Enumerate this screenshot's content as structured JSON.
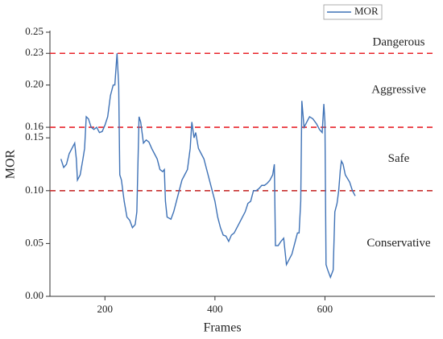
{
  "chart_data": {
    "type": "line",
    "xlabel": "Frames",
    "ylabel": "MOR",
    "x": [
      120,
      125,
      130,
      135,
      140,
      145,
      148,
      150,
      155,
      160,
      163,
      166,
      170,
      175,
      180,
      185,
      190,
      195,
      200,
      205,
      210,
      215,
      218,
      222,
      225,
      227,
      230,
      235,
      240,
      245,
      250,
      255,
      258,
      262,
      265,
      270,
      275,
      280,
      285,
      290,
      295,
      300,
      305,
      308,
      310,
      313,
      320,
      325,
      330,
      335,
      340,
      345,
      350,
      355,
      358,
      362,
      365,
      370,
      375,
      380,
      385,
      390,
      395,
      400,
      405,
      410,
      415,
      420,
      425,
      430,
      435,
      440,
      445,
      450,
      455,
      460,
      465,
      470,
      475,
      480,
      485,
      490,
      495,
      500,
      505,
      508,
      510,
      515,
      520,
      525,
      528,
      530,
      535,
      540,
      545,
      550,
      553,
      556,
      558,
      562,
      567,
      572,
      578,
      585,
      590,
      595,
      598,
      600,
      602,
      605,
      610,
      615,
      618,
      622,
      625,
      628,
      630,
      633,
      637,
      645,
      650,
      655
    ],
    "series": [
      {
        "name": "MOR",
        "color": "#3f72b6",
        "values": [
          0.13,
          0.122,
          0.125,
          0.135,
          0.14,
          0.145,
          0.13,
          0.11,
          0.115,
          0.13,
          0.14,
          0.17,
          0.168,
          0.16,
          0.158,
          0.16,
          0.155,
          0.156,
          0.162,
          0.17,
          0.19,
          0.2,
          0.2,
          0.23,
          0.2,
          0.115,
          0.11,
          0.09,
          0.075,
          0.072,
          0.065,
          0.068,
          0.08,
          0.17,
          0.165,
          0.145,
          0.148,
          0.146,
          0.14,
          0.135,
          0.13,
          0.12,
          0.118,
          0.12,
          0.09,
          0.075,
          0.073,
          0.08,
          0.09,
          0.1,
          0.11,
          0.115,
          0.12,
          0.14,
          0.165,
          0.15,
          0.155,
          0.14,
          0.135,
          0.13,
          0.12,
          0.11,
          0.1,
          0.09,
          0.075,
          0.065,
          0.058,
          0.057,
          0.052,
          0.058,
          0.06,
          0.065,
          0.07,
          0.075,
          0.08,
          0.088,
          0.09,
          0.1,
          0.1,
          0.102,
          0.105,
          0.105,
          0.107,
          0.11,
          0.115,
          0.125,
          0.048,
          0.048,
          0.052,
          0.055,
          0.04,
          0.03,
          0.035,
          0.04,
          0.05,
          0.06,
          0.06,
          0.09,
          0.185,
          0.16,
          0.165,
          0.17,
          0.168,
          0.163,
          0.158,
          0.155,
          0.182,
          0.165,
          0.03,
          0.025,
          0.018,
          0.025,
          0.08,
          0.088,
          0.1,
          0.12,
          0.128,
          0.125,
          0.115,
          0.108,
          0.1,
          0.095
        ]
      }
    ],
    "xlim": [
      100,
      800
    ],
    "xticks": [
      200,
      400,
      600
    ],
    "ylim": [
      0,
      0.25
    ],
    "yticks": [
      {
        "value": 0,
        "label": "0.00"
      },
      0.05,
      {
        "value": 0.1,
        "label": "0.10"
      },
      0.15,
      0.16,
      {
        "value": 0.2,
        "label": "0.20"
      },
      0.23,
      0.25
    ],
    "reference_lines": [
      {
        "value": 0.23,
        "color": "#e8242b"
      },
      {
        "value": 0.16,
        "color": "#e8242b"
      },
      {
        "value": 0.1,
        "color": "#c8302f"
      }
    ],
    "annotations": [
      "Dangerous",
      "Aggressive",
      "Safe",
      "Conservative"
    ],
    "legend": "upper right"
  }
}
